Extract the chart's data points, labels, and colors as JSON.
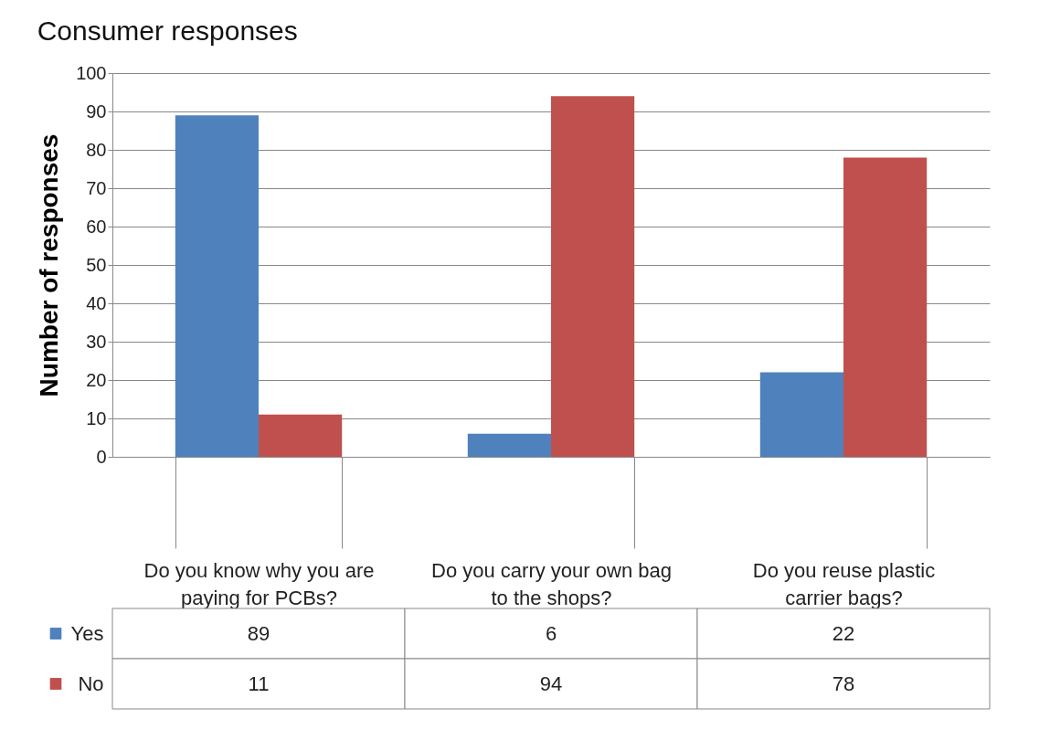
{
  "chart_data": {
    "type": "bar",
    "title": "Consumer responses",
    "ylabel": "Number of responses",
    "categories": [
      "Do you know why you are paying for PCBs?",
      "Do you carry your own bag to the shops?",
      "Do you reuse plastic carrier bags?"
    ],
    "series": [
      {
        "name": "Yes",
        "color": "#4f81bd",
        "values": [
          89,
          6,
          22
        ]
      },
      {
        "name": "No",
        "color": "#c0504d",
        "values": [
          11,
          94,
          78
        ]
      }
    ],
    "ylim": [
      0,
      100
    ],
    "yticks": [
      0,
      10,
      20,
      30,
      40,
      50,
      60,
      70,
      80,
      90,
      100
    ],
    "grid": "y",
    "legend": "bottom left",
    "data_labels": true
  }
}
